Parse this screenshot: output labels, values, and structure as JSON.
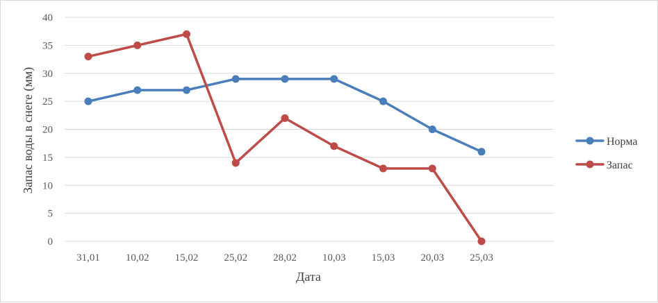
{
  "chart_data": {
    "type": "line",
    "title": "",
    "xlabel": "Дата",
    "ylabel": "Запас воды в снеге (мм)",
    "categories": [
      "31,01",
      "10,02",
      "15,02",
      "25,02",
      "28,02",
      "10,03",
      "15,03",
      "20,03",
      "25,03"
    ],
    "ylim": [
      0,
      40
    ],
    "yticks": [
      0,
      5,
      10,
      15,
      20,
      25,
      30,
      35,
      40
    ],
    "grid": true,
    "legend": "right",
    "series": [
      {
        "name": "Норма",
        "color": "#4a7ebb",
        "values": [
          25,
          27,
          27,
          29,
          29,
          29,
          25,
          20,
          16
        ]
      },
      {
        "name": "Запас",
        "color": "#be4b48",
        "values": [
          33,
          35,
          37,
          14,
          22,
          17,
          13,
          13,
          0
        ]
      }
    ]
  }
}
